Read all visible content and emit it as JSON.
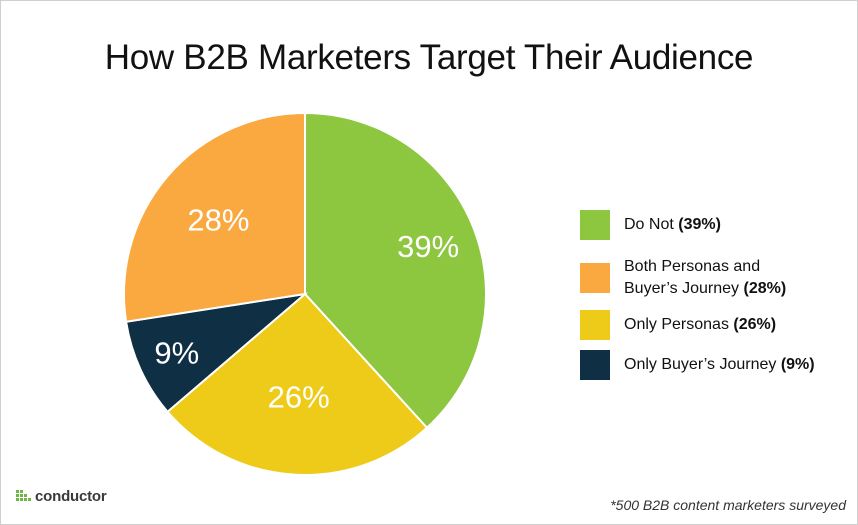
{
  "chart_data": {
    "type": "pie",
    "title": "How B2B Marketers Target Their Audience",
    "slices": [
      {
        "name": "Do Not",
        "value": 39,
        "label": "39%",
        "legend_name": "Do Not",
        "legend_value": "(39%)",
        "color": "#8dc63f"
      },
      {
        "name": "Only Personas",
        "value": 26,
        "label": "26%",
        "legend_name": "Only Personas",
        "legend_value": "(26%)",
        "color": "#eecb18"
      },
      {
        "name": "Only Buyer’s Journey",
        "value": 9,
        "label": "9%",
        "legend_name": "Only Buyer’s Journey",
        "legend_value": "(9%)",
        "color": "#0e2f44"
      },
      {
        "name": "Both Personas and Buyer’s Journey",
        "value": 28,
        "label": "28%",
        "legend_name": "Both Personas and Buyer’s Journey",
        "legend_value": "(28%)",
        "color": "#f9a940"
      }
    ],
    "legend": {
      "placement": "right",
      "order": [
        0,
        3,
        1,
        2
      ]
    }
  },
  "branding": {
    "logo_text": "conductor",
    "logo_icon": "conductor-dots-icon",
    "logo_color": "#6fb744"
  },
  "footnote": "*500 B2B content marketers surveyed"
}
